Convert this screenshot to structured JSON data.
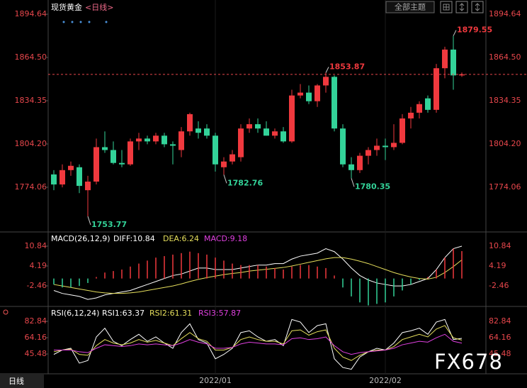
{
  "toolbar": {
    "title": "现货黄金",
    "subtitle": "<日线>",
    "theme_button": "全部主题"
  },
  "footer": {
    "period_tab": "日线"
  },
  "watermark": "FX678",
  "chart_data": [
    {
      "type": "candlestick",
      "categories": [
        null,
        null,
        null,
        null,
        null,
        null,
        null,
        null,
        null,
        null,
        null,
        null,
        null,
        null,
        null,
        null,
        null,
        null,
        null,
        "2022/01",
        null,
        null,
        null,
        null,
        null,
        null,
        null,
        null,
        null,
        null,
        null,
        null,
        null,
        null,
        null,
        null,
        null,
        null,
        null,
        "2022/02",
        null,
        null,
        null,
        null,
        null,
        null,
        null,
        null,
        null
      ],
      "open": [
        1783,
        1776,
        1786,
        1788,
        1772,
        1778,
        1802,
        1800,
        1791,
        1790,
        1806,
        1808,
        1806,
        1810,
        1804,
        1800,
        1813,
        1815,
        1815,
        1810,
        1788,
        1792,
        1795,
        1815,
        1818,
        1815,
        1810,
        1813,
        1806,
        1838,
        1840,
        1834,
        1845,
        1851,
        1815,
        1790,
        1786,
        1796,
        1800,
        1803,
        1802,
        1805,
        1822,
        1826,
        1836,
        1828,
        1857,
        1870,
        1852
      ],
      "high": [
        1786,
        1790,
        1792,
        1790,
        1782,
        1808,
        1813,
        1806,
        1800,
        1808,
        1812,
        1810,
        1812,
        1812,
        1806,
        1816,
        1826,
        1820,
        1818,
        1812,
        1795,
        1800,
        1818,
        1822,
        1822,
        1820,
        1815,
        1816,
        1842,
        1846,
        1845,
        1846,
        1853.87,
        1852,
        1818,
        1795,
        1798,
        1802,
        1808,
        1808,
        1818,
        1825,
        1830,
        1834,
        1838,
        1860,
        1872,
        1879.55,
        1854
      ],
      "low": [
        1772,
        1774,
        1782,
        1770,
        1753.77,
        1776,
        1798,
        1790,
        1788,
        1789,
        1800,
        1804,
        1804,
        1802,
        1790,
        1795,
        1810,
        1808,
        1808,
        1785,
        1782.76,
        1790,
        1792,
        1812,
        1812,
        1810,
        1808,
        1805,
        1805,
        1836,
        1832,
        1830,
        1840,
        1813,
        1788,
        1780.35,
        1784,
        1790,
        1796,
        1793,
        1800,
        1804,
        1815,
        1822,
        1826,
        1826,
        1850,
        1842,
        1851
      ],
      "close": [
        1776,
        1786,
        1789,
        1775,
        1778,
        1802,
        1800,
        1791,
        1790,
        1806,
        1808,
        1806,
        1810,
        1804,
        1803,
        1813,
        1825,
        1812,
        1810,
        1790,
        1792,
        1797,
        1815,
        1818,
        1815,
        1810,
        1813,
        1806,
        1838,
        1840,
        1834,
        1845,
        1851,
        1815,
        1790,
        1786,
        1796,
        1800,
        1803,
        1802,
        1805,
        1822,
        1826,
        1832,
        1828,
        1857,
        1870,
        1852,
        1852.7
      ],
      "up_color": "#f0393e",
      "down_color": "#33d399",
      "last_line_color": "#e8474c",
      "ylim": [
        1743.9,
        1899.6
      ],
      "yticks": [
        1894.64,
        {
          "value": 1864.5,
          "label": "1864.50"
        },
        1834.35,
        {
          "value": 1804.2,
          "label": "1804.20"
        },
        1774.06
      ]
    },
    {
      "type": "macd",
      "title": "MACD(26,12,9)",
      "series": [
        {
          "name": "DIFF:10.84",
          "color": "#ffffff",
          "values": [
            -4,
            -5,
            -5.5,
            -6,
            -7,
            -6.5,
            -5.5,
            -5,
            -4.5,
            -4,
            -3,
            -2,
            -1,
            0,
            1,
            1.5,
            2.5,
            3.5,
            3.5,
            3,
            3,
            3,
            3.5,
            4,
            4.5,
            4.5,
            5,
            5,
            6.5,
            7.5,
            8,
            8.5,
            10,
            9,
            6.5,
            3.5,
            1,
            -0.5,
            -1.5,
            -2,
            -2.5,
            -2.5,
            -2,
            -1,
            0,
            3,
            7,
            10,
            10.84
          ]
        },
        {
          "name": "DEA:6.24",
          "color": "#e6df5c",
          "values": [
            -2,
            -2.5,
            -3,
            -3.5,
            -4,
            -4.5,
            -4.8,
            -5,
            -5,
            -4.8,
            -4.5,
            -4,
            -3.5,
            -3,
            -2.5,
            -1.8,
            -1,
            -0.3,
            0.3,
            0.8,
            1.3,
            1.7,
            2,
            2.5,
            2.8,
            3.1,
            3.4,
            3.7,
            4.2,
            4.8,
            5.4,
            6,
            6.6,
            7,
            7,
            6.5,
            5.8,
            5,
            4,
            3,
            2,
            1.2,
            0.5,
            0,
            -0.2,
            0.4,
            2,
            4,
            6.24
          ]
        },
        {
          "name": "MACD:9.18",
          "color": "#e040e0",
          "type": "bar",
          "values": [
            -2,
            -3,
            -3,
            -2.5,
            -1.5,
            0.5,
            2,
            2.5,
            3,
            4,
            5,
            6,
            7,
            7.5,
            8,
            8.5,
            9,
            8.5,
            8,
            7,
            6,
            5,
            4.5,
            4.5,
            4.5,
            4,
            3.5,
            3,
            4,
            4.5,
            4.5,
            4,
            3.5,
            1,
            -3,
            -6,
            -8,
            -9,
            -8.5,
            -8,
            -6,
            -4,
            -2,
            -0.5,
            0.5,
            3,
            7,
            10,
            9.18
          ]
        }
      ],
      "ylim": [
        -9.35,
        13.69
      ],
      "yticks": [
        10.84,
        4.19,
        -2.46
      ]
    },
    {
      "type": "line",
      "title": "RSI(6,12,24)",
      "series": [
        {
          "name": "RSI1:63.37",
          "color": "#ffffff",
          "values": [
            45,
            50,
            52,
            35,
            38,
            65,
            75,
            60,
            55,
            62,
            68,
            60,
            65,
            58,
            52,
            70,
            80,
            62,
            58,
            40,
            45,
            52,
            70,
            72,
            65,
            60,
            62,
            55,
            85,
            82,
            70,
            78,
            80,
            40,
            30,
            28,
            42,
            48,
            52,
            50,
            58,
            70,
            72,
            75,
            68,
            82,
            85,
            62,
            63.37
          ]
        },
        {
          "name": "RSI2:61.31",
          "color": "#e6df5c",
          "values": [
            48,
            50,
            51,
            45,
            44,
            55,
            62,
            58,
            56,
            58,
            62,
            59,
            61,
            58,
            55,
            63,
            70,
            63,
            60,
            50,
            50,
            53,
            62,
            65,
            62,
            60,
            60,
            57,
            72,
            73,
            67,
            71,
            73,
            52,
            42,
            38,
            44,
            48,
            50,
            50,
            54,
            62,
            65,
            68,
            65,
            74,
            78,
            64,
            61.31
          ]
        },
        {
          "name": "RSI3:57.87",
          "color": "#e040e0",
          "values": [
            50,
            50,
            50,
            48,
            47,
            52,
            56,
            55,
            54,
            55,
            57,
            56,
            57,
            56,
            55,
            58,
            62,
            59,
            57,
            52,
            52,
            53,
            57,
            59,
            58,
            57,
            57,
            56,
            63,
            64,
            62,
            63,
            65,
            55,
            48,
            45,
            47,
            48,
            49,
            50,
            52,
            56,
            58,
            60,
            59,
            64,
            68,
            60,
            57.87
          ]
        }
      ],
      "ylim": [
        24.4,
        93.4
      ],
      "yticks": [
        82.84,
        64.16,
        45.48
      ]
    }
  ]
}
